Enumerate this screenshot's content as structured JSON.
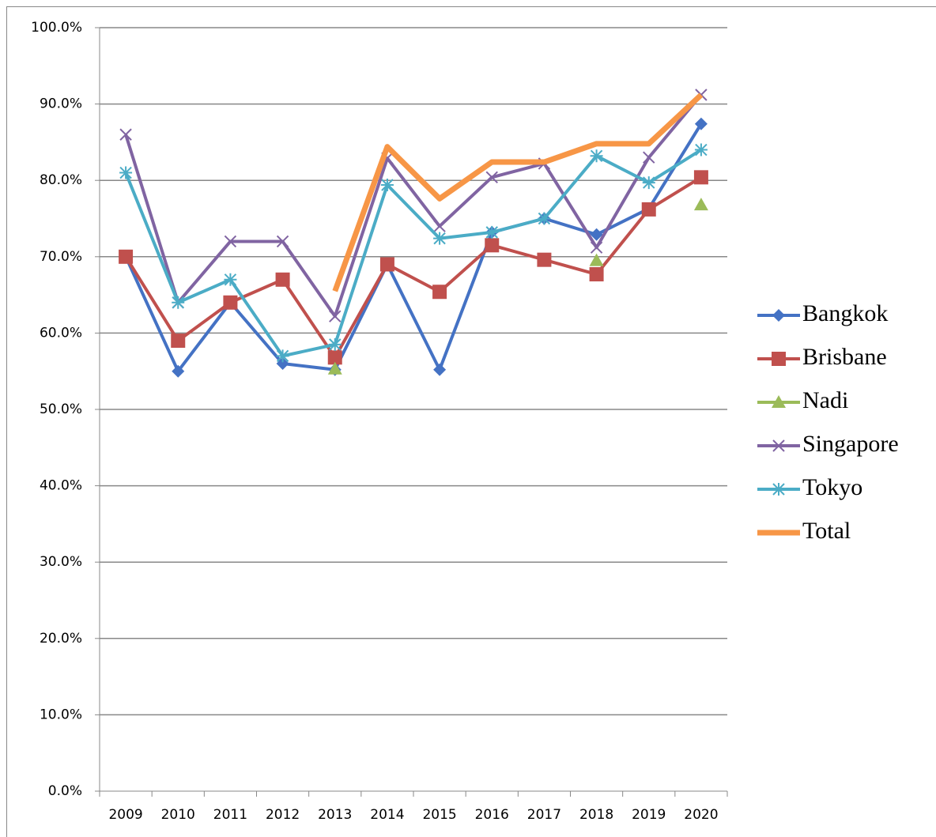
{
  "chart_data": {
    "type": "line",
    "categories": [
      "2009",
      "2010",
      "2011",
      "2012",
      "2013",
      "2014",
      "2015",
      "2016",
      "2017",
      "2018",
      "2019",
      "2020"
    ],
    "ylim": [
      0,
      100
    ],
    "yticks": [
      {
        "value": 0,
        "label": "0.0%"
      },
      {
        "value": 10,
        "label": "10.0%"
      },
      {
        "value": 20,
        "label": "20.0%"
      },
      {
        "value": 30,
        "label": "30.0%"
      },
      {
        "value": 40,
        "label": "40.0%"
      },
      {
        "value": 50,
        "label": "50.0%"
      },
      {
        "value": 60,
        "label": "60.0%"
      },
      {
        "value": 70,
        "label": "70.0%"
      },
      {
        "value": 80,
        "label": "80.0%"
      },
      {
        "value": 90,
        "label": "90.0%"
      },
      {
        "value": 100,
        "label": "100.0%"
      }
    ],
    "grid": true,
    "legend": "right",
    "series": [
      {
        "name": "Bangkok",
        "color": "#4472c4",
        "marker": "diamond",
        "values": [
          70,
          55,
          64,
          56,
          55.2,
          69,
          55.2,
          73.2,
          75,
          72.9,
          76.3,
          87.4
        ]
      },
      {
        "name": "Brisbane",
        "color": "#c0504d",
        "marker": "square",
        "values": [
          70,
          59,
          64,
          67,
          56.8,
          69,
          65.4,
          71.5,
          69.6,
          67.7,
          76.2,
          80.4
        ]
      },
      {
        "name": "Nadi",
        "color": "#9bbb59",
        "marker": "triangle",
        "values": [
          null,
          null,
          null,
          null,
          55.3,
          null,
          null,
          null,
          null,
          69.5,
          null,
          76.8
        ]
      },
      {
        "name": "Singapore",
        "color": "#8064a2",
        "marker": "x",
        "values": [
          86,
          64,
          72,
          72,
          62.2,
          82.9,
          74,
          80.4,
          82.2,
          71.2,
          83,
          91.2
        ]
      },
      {
        "name": "Tokyo",
        "color": "#4bacc6",
        "marker": "star",
        "values": [
          81,
          64,
          67,
          57,
          58.5,
          79.4,
          72.4,
          73.2,
          75,
          83.2,
          79.7,
          84
        ]
      },
      {
        "name": "Total",
        "color": "#f79646",
        "marker": "none",
        "values": [
          null,
          null,
          null,
          null,
          65.5,
          84.4,
          77.6,
          82.4,
          82.4,
          84.8,
          84.8,
          91.2
        ]
      }
    ]
  }
}
